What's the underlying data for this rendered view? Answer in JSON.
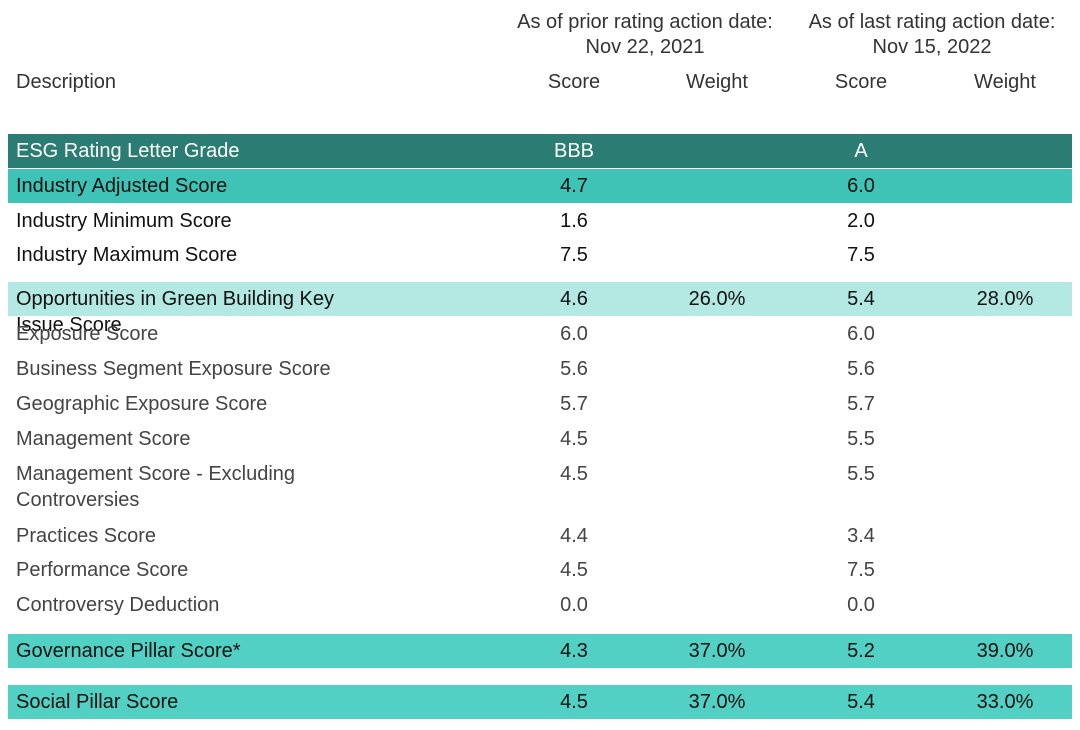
{
  "table": {
    "group_headers": [
      {
        "line1": "As of prior rating action date:",
        "line2": "Nov 22, 2021"
      },
      {
        "line1": "As of last rating action date:",
        "line2": "Nov 15, 2022"
      }
    ],
    "columns": [
      "Description",
      "Score",
      "Weight",
      "Score",
      "Weight"
    ],
    "rows": [
      [
        "ESG Rating Letter Grade",
        "BBB",
        null,
        "A",
        null
      ],
      [
        "Industry Adjusted Score",
        "4.7",
        null,
        "6.0",
        null
      ],
      [
        "Industry Minimum Score",
        "1.6",
        null,
        "2.0",
        null
      ],
      [
        "Industry Maximum Score",
        "7.5",
        null,
        "7.5",
        null
      ],
      [
        "Opportunities in Green Building Key Issue Score",
        "4.6",
        "26.0%",
        "5.4",
        "28.0%"
      ],
      [
        "Exposure Score",
        "6.0",
        null,
        "6.0",
        null
      ],
      [
        "Business Segment Exposure Score",
        "5.6",
        null,
        "5.6",
        null
      ],
      [
        "Geographic Exposure Score",
        "5.7",
        null,
        "5.7",
        null
      ],
      [
        "Management Score",
        "4.5",
        null,
        "5.5",
        null
      ],
      [
        "Management Score - Excluding Controversies",
        "4.5",
        null,
        "5.5",
        null
      ],
      [
        "Practices Score",
        "4.4",
        null,
        "3.4",
        null
      ],
      [
        "Performance Score",
        "4.5",
        null,
        "7.5",
        null
      ],
      [
        "Controversy Deduction",
        "0.0",
        null,
        "0.0",
        null
      ],
      [
        "Governance Pillar Score*",
        "4.3",
        "37.0%",
        "5.2",
        "39.0%"
      ],
      [
        "Social Pillar Score",
        "4.5",
        "37.0%",
        "5.4",
        "33.0%"
      ]
    ]
  }
}
